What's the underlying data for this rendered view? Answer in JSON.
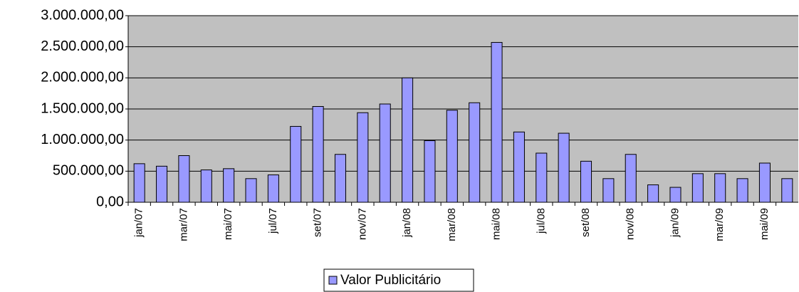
{
  "chart_data": {
    "type": "bar",
    "categories": [
      "jan/07",
      null,
      "mar/07",
      null,
      "mai/07",
      null,
      "jul/07",
      null,
      "set/07",
      null,
      "nov/07",
      null,
      "jan/08",
      null,
      "mar/08",
      null,
      "mai/08",
      null,
      "jul/08",
      null,
      "set/08",
      null,
      "nov/08",
      null,
      "jan/09",
      null,
      "mar/09",
      null,
      "mai/09",
      null
    ],
    "series": [
      {
        "name": "Valor Publicitário",
        "color": "#9999ff",
        "values": [
          620000,
          580000,
          750000,
          520000,
          540000,
          380000,
          440000,
          1220000,
          1540000,
          770000,
          1440000,
          1580000,
          2000000,
          990000,
          1480000,
          1600000,
          2570000,
          1130000,
          790000,
          1110000,
          660000,
          380000,
          770000,
          280000,
          240000,
          460000,
          460000,
          380000,
          630000,
          380000
        ]
      }
    ],
    "ylim": [
      0,
      3000000
    ],
    "yticks": [
      {
        "value": 0,
        "label": "0,00"
      },
      {
        "value": 500000,
        "label": "500.000,00"
      },
      {
        "value": 1000000,
        "label": "1.000.000,00"
      },
      {
        "value": 1500000,
        "label": "1.500.000,00"
      },
      {
        "value": 2000000,
        "label": "2.000.000,00"
      },
      {
        "value": 2500000,
        "label": "2.500.000,00"
      },
      {
        "value": 3000000,
        "label": "3.000.000,00"
      }
    ],
    "grid": true,
    "legend": "bottom"
  }
}
